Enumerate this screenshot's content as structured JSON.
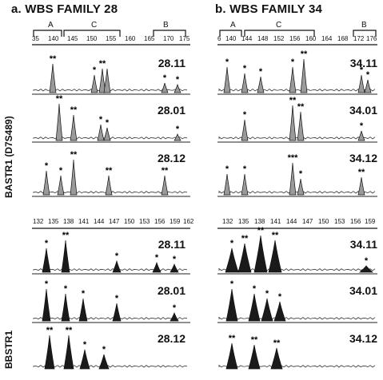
{
  "headers": {
    "family_a": "a. WBS FAMILY 28",
    "family_b": "b. WBS FAMILY 34"
  },
  "row_labels": {
    "top": "BASTR1 (D7S489)",
    "bottom": "BBSTR1"
  },
  "regions": {
    "a": "A",
    "b": "C",
    "c": "B"
  },
  "ticks": {
    "top_left": [
      "35",
      "140",
      "145",
      "150",
      "155",
      "160",
      "165",
      "170",
      "175"
    ],
    "top_right": [
      "6",
      "140",
      "144",
      "148",
      "152",
      "156",
      "160",
      "164",
      "168",
      "172",
      "176"
    ],
    "bottom_left": [
      "132",
      "135",
      "138",
      "141",
      "144",
      "147",
      "150",
      "153",
      "156",
      "159",
      "162"
    ],
    "bottom_right": [
      "132",
      "135",
      "138",
      "141",
      "144",
      "147",
      "150",
      "153",
      "156",
      "159"
    ]
  },
  "panels": {
    "top_left": [
      "28.11",
      "28.01",
      "28.12"
    ],
    "top_right": [
      "34.11",
      "34.01",
      "34.12"
    ],
    "bottom_left": [
      "28.11",
      "28.01",
      "28.12"
    ],
    "bottom_right": [
      "34.11",
      "34.01",
      "34.12"
    ]
  },
  "marker_symbol": "*",
  "colors": {
    "top_peak_fill": "#9a9a9a",
    "bottom_peak_fill": "#1a1a1a"
  }
}
